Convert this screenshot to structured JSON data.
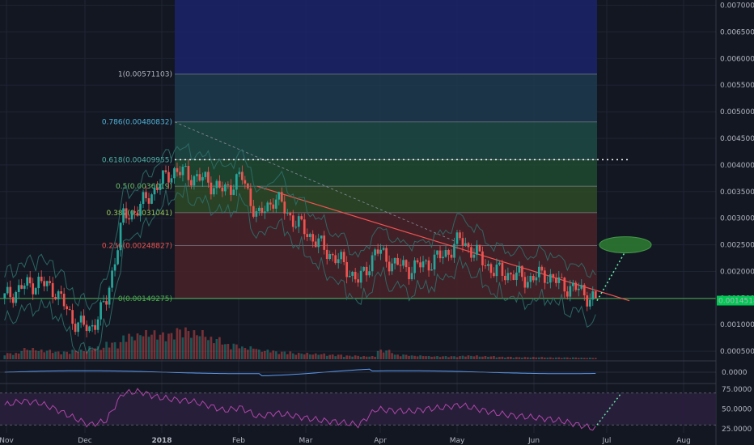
{
  "colors": {
    "background": "#131722",
    "grid": "#1f2433",
    "up_candle": "#26a69a",
    "down_candle": "#ef5350",
    "bollinger": "#2e6f6a",
    "trendline": "#ef5350",
    "support_line": "#4caf50",
    "price_tag": "#00c853",
    "rsi_line": "#b046a8",
    "rsi_band": "#2a1f3d",
    "target_ellipse": "#4caf50"
  },
  "chart_data": [
    {
      "type": "candlestick",
      "pane": "price",
      "x_ticks": [
        "Nov",
        "Dec",
        "2018",
        "Feb",
        "Mar",
        "Apr",
        "May",
        "Jun",
        "Jul",
        "Aug"
      ],
      "y_ticks": [
        "0.00700000",
        "0.00650000",
        "0.00600000",
        "0.00550000",
        "0.00500000",
        "0.00450000",
        "0.00400000",
        "0.00350000",
        "0.00300000",
        "0.00250000",
        "0.00200000",
        "0.00150000",
        "0.00100000",
        "0.00050000"
      ],
      "ylim": [
        0.00035,
        0.0071
      ],
      "current_price_label": "0.00145188",
      "current_price": 0.00145188,
      "fibonacci_levels": [
        {
          "label": "1(0.00571103)",
          "value": 0.00571103,
          "fill": "#2a2d3a"
        },
        {
          "label": "0.786(0.00480832)",
          "value": 0.00480832,
          "fill": "#1f3a4d"
        },
        {
          "label": "0.618(0.00409955)",
          "value": 0.00409955,
          "fill": "#1e4a44"
        },
        {
          "label": "0.5(0.0036019)",
          "value": 0.0036019,
          "fill": "#1f4a30"
        },
        {
          "label": "0.382(0.0031041)",
          "value": 0.0031041,
          "fill": "#2e4a26"
        },
        {
          "label": "0.236(0.00248827)",
          "value": 0.00248827,
          "fill": "#4a2228"
        },
        {
          "label": "0(0.00149275)",
          "value": 0.00149275,
          "fill": "#4a2228"
        }
      ],
      "fib_extension_top_fill": "#1b2466",
      "series": [
        {
          "name": "close",
          "dates": [
            "2017-11-01",
            "2017-11-08",
            "2017-11-15",
            "2017-11-22",
            "2017-11-29",
            "2017-12-06",
            "2017-12-13",
            "2017-12-17",
            "2017-12-21",
            "2017-12-25",
            "2018-01-01",
            "2018-01-08",
            "2018-01-15",
            "2018-01-22",
            "2018-01-29",
            "2018-02-05",
            "2018-02-12",
            "2018-02-19",
            "2018-02-26",
            "2018-03-05",
            "2018-03-12",
            "2018-03-19",
            "2018-03-26",
            "2018-04-02",
            "2018-04-09",
            "2018-04-16",
            "2018-04-23",
            "2018-04-30",
            "2018-05-07",
            "2018-05-14",
            "2018-05-21",
            "2018-05-28",
            "2018-06-04",
            "2018-06-11",
            "2018-06-18",
            "2018-06-24"
          ],
          "close": [
            0.0015,
            0.0017,
            0.0018,
            0.00165,
            0.0011,
            0.0009,
            0.0014,
            0.003,
            0.0032,
            0.0036,
            0.0039,
            0.0038,
            0.0037,
            0.0035,
            0.0038,
            0.003,
            0.0034,
            0.003,
            0.0027,
            0.0024,
            0.00215,
            0.0018,
            0.0024,
            0.00215,
            0.00205,
            0.00215,
            0.0023,
            0.0026,
            0.0023,
            0.002,
            0.00195,
            0.00185,
            0.00195,
            0.00175,
            0.00165,
            0.00145
          ]
        }
      ],
      "volume": [
        0.2,
        0.35,
        0.3,
        0.25,
        0.3,
        0.4,
        0.55,
        0.8,
        0.9,
        0.85,
        1.0,
        0.9,
        0.7,
        0.5,
        0.4,
        0.3,
        0.25,
        0.2,
        0.18,
        0.15,
        0.12,
        0.1,
        0.3,
        0.15,
        0.12,
        0.1,
        0.1,
        0.12,
        0.1,
        0.08,
        0.07,
        0.07,
        0.06,
        0.06,
        0.05,
        0.05
      ]
    },
    {
      "type": "line",
      "pane": "macd",
      "y_ticks": [
        "0.0000"
      ]
    },
    {
      "type": "line",
      "pane": "rsi",
      "y_ticks": [
        "75.0000",
        "50.0000",
        "25.0000"
      ],
      "ylim": [
        20,
        80
      ],
      "values": [
        55,
        60,
        58,
        50,
        40,
        30,
        35,
        70,
        72,
        65,
        62,
        60,
        55,
        48,
        52,
        40,
        45,
        42,
        38,
        35,
        33,
        30,
        50,
        48,
        47,
        50,
        52,
        55,
        50,
        45,
        42,
        40,
        38,
        35,
        30,
        25
      ]
    }
  ]
}
